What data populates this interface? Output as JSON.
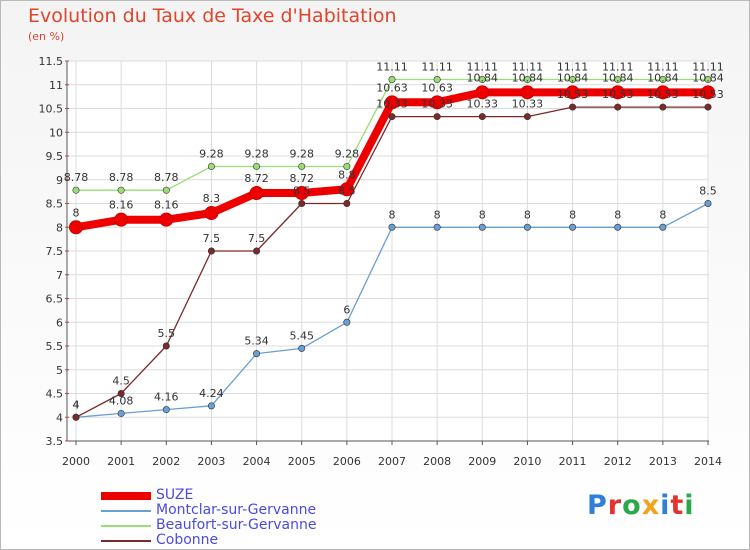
{
  "header": {
    "title": "Evolution du Taux de Taxe d'Habitation",
    "subtitle": "(en %)"
  },
  "logo": {
    "text": "Proxiti",
    "letters": [
      "P",
      "r",
      "o",
      "x",
      "i",
      "t",
      "i"
    ],
    "colors": [
      "#2f7fd6",
      "#e3342f",
      "#2aa84a",
      "#f2a21c",
      "#2f7fd6",
      "#e3342f",
      "#2aa84a"
    ]
  },
  "chart_data": {
    "type": "line",
    "x": [
      "2000",
      "2001",
      "2002",
      "2003",
      "2004",
      "2005",
      "2006",
      "2007",
      "2008",
      "2009",
      "2010",
      "2011",
      "2012",
      "2013",
      "2014"
    ],
    "ylim": [
      3.5,
      11.5
    ],
    "yticks": [
      "3.5",
      "4",
      "4.5",
      "5",
      "5.5",
      "6",
      "6.5",
      "7",
      "7.5",
      "8",
      "8.5",
      "9",
      "9.5",
      "10",
      "10.5",
      "11",
      "11.5"
    ],
    "grid": true,
    "legend_position": "bottom-left",
    "series": [
      {
        "name": "SUZE",
        "color": "#ee0000",
        "values": [
          8,
          8.16,
          8.16,
          8.3,
          8.72,
          8.72,
          8.8,
          10.63,
          10.63,
          10.84,
          10.84,
          10.84,
          10.84,
          10.84,
          10.84
        ],
        "labels": [
          "8",
          "8.16",
          "8.16",
          "8.3",
          "8.72",
          "8.72",
          "8.8",
          "10.63",
          "10.63",
          "10.84",
          "10.84",
          "10.84",
          "10.84",
          "10.84",
          "10.84"
        ]
      },
      {
        "name": "Montclar-sur-Gervanne",
        "color": "#6a9fd3",
        "values": [
          4,
          4.08,
          4.16,
          4.24,
          5.34,
          5.45,
          6,
          8,
          8,
          8,
          8,
          8,
          8,
          8,
          8.5
        ],
        "labels": [
          "4",
          "4.08",
          "4.16",
          "4.24",
          "5.34",
          "5.45",
          "6",
          "8",
          "8",
          "8",
          "8",
          "8",
          "8",
          "8",
          "8.5"
        ]
      },
      {
        "name": "Beaufort-sur-Gervanne",
        "color": "#99dd77",
        "values": [
          8.78,
          8.78,
          8.78,
          9.28,
          9.28,
          9.28,
          9.28,
          11.11,
          11.11,
          11.11,
          11.11,
          11.11,
          11.11,
          11.11,
          11.11
        ],
        "labels": [
          "8.78",
          "8.78",
          "8.78",
          "9.28",
          "9.28",
          "9.28",
          "9.28",
          "11.11",
          "11.11",
          "11.11",
          "11.11",
          "11.11",
          "11.11",
          "11.11",
          "11.11"
        ]
      },
      {
        "name": "Cobonne",
        "color": "#7a2a2a",
        "values": [
          4,
          4.5,
          5.5,
          7.5,
          7.5,
          8.5,
          8.5,
          10.33,
          10.33,
          10.33,
          10.33,
          10.53,
          10.53,
          10.53,
          10.53
        ],
        "labels": [
          "4",
          "4.5",
          "5.5",
          "7.5",
          "7.5",
          "8.5",
          "8.5",
          "10.33",
          "10.33",
          "10.33",
          "10.33",
          "10.53",
          "10.53",
          "10.53",
          "10.53"
        ]
      }
    ]
  }
}
